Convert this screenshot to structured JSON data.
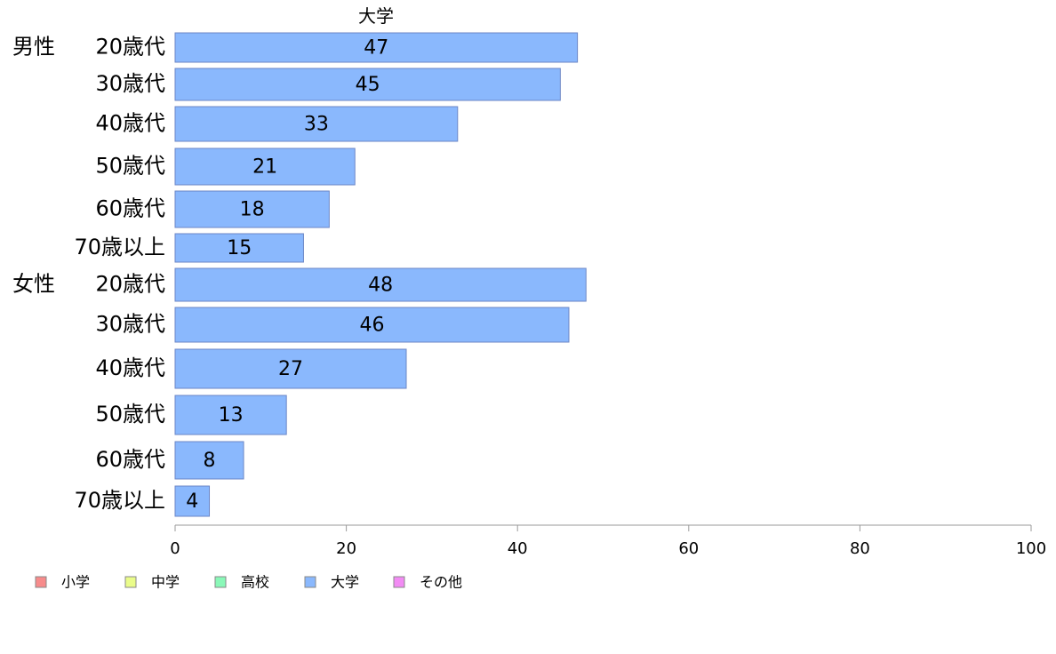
{
  "chart_data": {
    "type": "bar",
    "orientation": "horizontal",
    "title": "大学",
    "groups": [
      {
        "label": "男性",
        "categories": [
          "20歳代",
          "30歳代",
          "40歳代",
          "50歳代",
          "60歳代",
          "70歳以上"
        ],
        "values": [
          47,
          45,
          33,
          21,
          18,
          15
        ]
      },
      {
        "label": "女性",
        "categories": [
          "20歳代",
          "30歳代",
          "40歳代",
          "50歳代",
          "60歳代",
          "70歳以上"
        ],
        "values": [
          48,
          46,
          27,
          13,
          8,
          4
        ]
      }
    ],
    "xlim": [
      0,
      100
    ],
    "xticks": [
      0,
      20,
      40,
      60,
      80,
      100
    ],
    "grid": false,
    "legend_position": "bottom-left",
    "legend": [
      {
        "label": "小学",
        "color": "#f78b8b"
      },
      {
        "label": "中学",
        "color": "#eafc8a"
      },
      {
        "label": "高校",
        "color": "#8af8b8"
      },
      {
        "label": "大学",
        "color": "#8ab8fd"
      },
      {
        "label": "その他",
        "color": "#f28bf4"
      }
    ]
  }
}
